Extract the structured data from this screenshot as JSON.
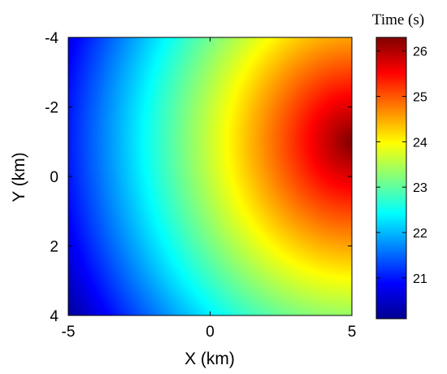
{
  "chart_data": {
    "type": "heatmap",
    "title": "",
    "xlabel": "X (km)",
    "ylabel": "Y (km)",
    "xlim": [
      -5,
      5
    ],
    "ylim": [
      4,
      -4
    ],
    "y_axis_reversed": true,
    "x_ticks": [
      "-5",
      "0",
      "5"
    ],
    "y_ticks": [
      "-4",
      "-2",
      "0",
      "2",
      "4"
    ],
    "colormap": "jet",
    "colorbar": {
      "title": "Time (s)",
      "range": [
        20.1,
        26.3
      ],
      "ticks": [
        "21",
        "22",
        "23",
        "24",
        "25",
        "26"
      ]
    },
    "field": {
      "description_values": [
        {
          "x": -5,
          "y": -4,
          "value": 21.0
        },
        {
          "x": -5,
          "y": 0,
          "value": 21.7
        },
        {
          "x": -5,
          "y": 4,
          "value": 20.2
        },
        {
          "x": 0,
          "y": 0,
          "value": 24.0
        },
        {
          "x": 0,
          "y": -4,
          "value": 23.6
        },
        {
          "x": 0,
          "y": 4,
          "value": 22.4
        },
        {
          "x": 5,
          "y": -1,
          "value": 26.3
        },
        {
          "x": 5,
          "y": -4,
          "value": 25.6
        },
        {
          "x": 5,
          "y": 4,
          "value": 24.0
        }
      ],
      "source": {
        "x": 5.0,
        "y": -1.0
      },
      "grid_on": false
    }
  }
}
